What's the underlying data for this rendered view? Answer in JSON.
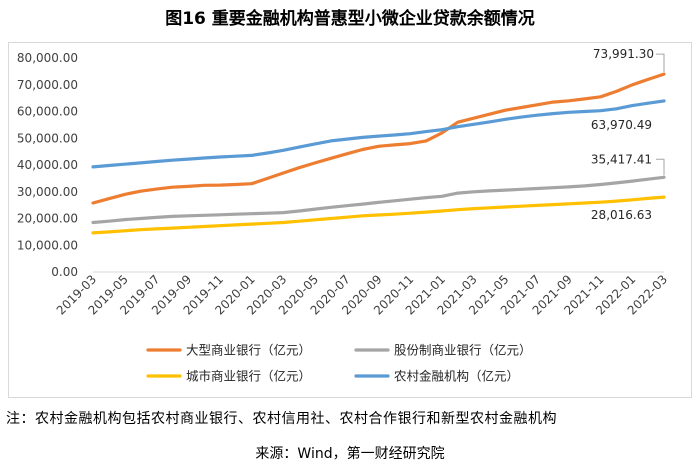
{
  "title": "图16  重要金融机构普惠型小微企业贷款余额情况",
  "note": "注：农村金融机构包括农村商业银行、农村信用社、农村合作银行和新型农村金融机构",
  "source": "来源：Wind，第一财经研究院",
  "chart_data": {
    "type": "line",
    "categories": [
      "2019-03",
      "2019-04",
      "2019-05",
      "2019-06",
      "2019-07",
      "2019-08",
      "2019-09",
      "2019-10",
      "2019-11",
      "2019-12",
      "2020-01",
      "2020-02",
      "2020-03",
      "2020-04",
      "2020-05",
      "2020-06",
      "2020-07",
      "2020-08",
      "2020-09",
      "2020-10",
      "2020-11",
      "2020-12",
      "2021-01",
      "2021-02",
      "2021-03",
      "2021-04",
      "2021-05",
      "2021-06",
      "2021-07",
      "2021-08",
      "2021-09",
      "2021-10",
      "2021-11",
      "2021-12",
      "2022-01",
      "2022-02",
      "2022-03"
    ],
    "tick_labels": [
      "2019-03",
      "2019-05",
      "2019-07",
      "2019-09",
      "2019-11",
      "2020-01",
      "2020-03",
      "2020-05",
      "2020-07",
      "2020-09",
      "2020-11",
      "2021-01",
      "2021-03",
      "2021-05",
      "2021-07",
      "2021-09",
      "2021-11",
      "2022-01",
      "2022-03"
    ],
    "ylim": [
      0,
      80000
    ],
    "yticks": [
      "0.00",
      "10,000.00",
      "20,000.00",
      "30,000.00",
      "40,000.00",
      "50,000.00",
      "60,000.00",
      "70,000.00",
      "80,000.00"
    ],
    "grid": false,
    "legend_position": "bottom",
    "xlabel": "",
    "ylabel": "",
    "series": [
      {
        "name": "大型商业银行（亿元）",
        "color": "#ed7d31",
        "end_label": "73,991.30",
        "values": [
          25800,
          27400,
          29000,
          30200,
          31000,
          31700,
          32000,
          32400,
          32500,
          32700,
          33000,
          35000,
          37000,
          39000,
          40800,
          42500,
          44200,
          45800,
          47000,
          47500,
          48000,
          49000,
          52000,
          56000,
          57500,
          59000,
          60500,
          61500,
          62500,
          63500,
          64000,
          64700,
          65500,
          67500,
          70000,
          72000,
          73991.3
        ]
      },
      {
        "name": "股份制商业银行（亿元）",
        "color": "#a5a5a5",
        "end_label": "35,417.41",
        "values": [
          18500,
          19000,
          19600,
          20000,
          20400,
          20800,
          21000,
          21200,
          21400,
          21600,
          21800,
          22000,
          22200,
          22800,
          23500,
          24200,
          24800,
          25400,
          26000,
          26600,
          27200,
          27800,
          28300,
          29500,
          30000,
          30300,
          30600,
          30900,
          31200,
          31500,
          31800,
          32200,
          32700,
          33300,
          34000,
          34700,
          35417.41
        ]
      },
      {
        "name": "城市商业银行（亿元）",
        "color": "#ffc000",
        "end_label": "28,016.63",
        "values": [
          14600,
          15000,
          15400,
          15800,
          16100,
          16400,
          16700,
          17000,
          17300,
          17600,
          17900,
          18200,
          18500,
          19000,
          19500,
          20000,
          20500,
          21000,
          21300,
          21600,
          22000,
          22400,
          22800,
          23300,
          23700,
          24000,
          24300,
          24600,
          24900,
          25200,
          25500,
          25800,
          26100,
          26500,
          27000,
          27500,
          28016.63
        ]
      },
      {
        "name": "农村金融机构（亿元）",
        "color": "#5b9bd5",
        "end_label": "63,970.49",
        "values": [
          39300,
          39800,
          40300,
          40800,
          41300,
          41800,
          42200,
          42600,
          43000,
          43300,
          43600,
          44500,
          45500,
          46700,
          47900,
          49000,
          49700,
          50300,
          50800,
          51200,
          51700,
          52500,
          53200,
          54300,
          55200,
          56100,
          57100,
          57900,
          58600,
          59200,
          59700,
          60000,
          60300,
          61000,
          62200,
          63100,
          63970.49
        ]
      }
    ]
  }
}
